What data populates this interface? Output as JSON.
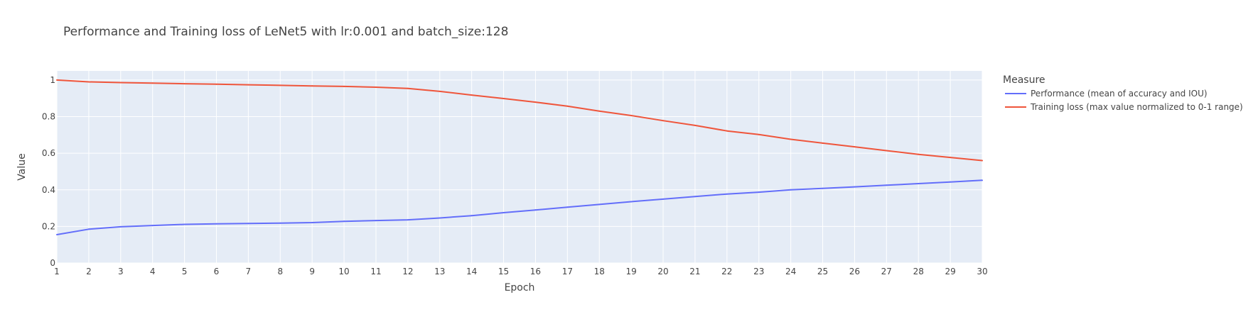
{
  "chart_data": {
    "type": "line",
    "title": "Performance and Training loss of LeNet5 with lr:0.001 and batch_size:128",
    "xlabel": "Epoch",
    "ylabel": "Value",
    "xlim": [
      1,
      30
    ],
    "ylim": [
      0,
      1.05
    ],
    "x": [
      1,
      2,
      3,
      4,
      5,
      6,
      7,
      8,
      9,
      10,
      11,
      12,
      13,
      14,
      15,
      16,
      17,
      18,
      19,
      20,
      21,
      22,
      23,
      24,
      25,
      26,
      27,
      28,
      29,
      30
    ],
    "xticks": [
      1,
      2,
      3,
      4,
      5,
      6,
      7,
      8,
      9,
      10,
      11,
      12,
      13,
      14,
      15,
      16,
      17,
      18,
      19,
      20,
      21,
      22,
      23,
      24,
      25,
      26,
      27,
      28,
      29,
      30
    ],
    "yticks": [
      0,
      0.2,
      0.4,
      0.6,
      0.8,
      1
    ],
    "ytick_labels": [
      "0",
      "0.2",
      "0.4",
      "0.6",
      "0.8",
      "1"
    ],
    "grid": true,
    "legend": {
      "title": "Measure",
      "placement": "right"
    },
    "series": [
      {
        "name": "Performance (mean of accuracy and IOU)",
        "color": "#636efa",
        "values": [
          0.155,
          0.185,
          0.198,
          0.205,
          0.211,
          0.214,
          0.216,
          0.218,
          0.221,
          0.228,
          0.232,
          0.236,
          0.246,
          0.259,
          0.275,
          0.29,
          0.305,
          0.32,
          0.335,
          0.349,
          0.363,
          0.377,
          0.387,
          0.4,
          0.408,
          0.416,
          0.425,
          0.434,
          0.443,
          0.452
        ]
      },
      {
        "name": "Training loss (max value normalized to 0-1 range)",
        "color": "#ef553b",
        "values": [
          1.0,
          0.99,
          0.986,
          0.983,
          0.98,
          0.977,
          0.974,
          0.971,
          0.968,
          0.965,
          0.961,
          0.954,
          0.938,
          0.918,
          0.899,
          0.879,
          0.857,
          0.83,
          0.806,
          0.778,
          0.752,
          0.722,
          0.702,
          0.676,
          0.655,
          0.635,
          0.614,
          0.594,
          0.577,
          0.56
        ]
      }
    ]
  }
}
